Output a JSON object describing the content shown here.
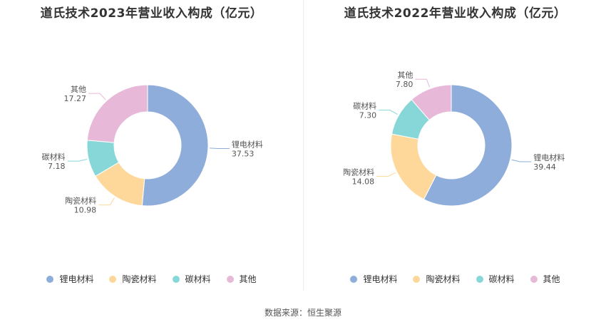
{
  "source": "数据来源：恒生聚源",
  "chart_data": [
    {
      "type": "pie",
      "title": "道氏技术2023年营业收入构成（亿元）",
      "categories": [
        "锂电材料",
        "陶瓷材料",
        "碳材料",
        "其他"
      ],
      "values": [
        37.53,
        10.98,
        7.18,
        17.27
      ],
      "value_labels": [
        "37.53",
        "10.98",
        "7.18",
        "17.27"
      ],
      "colors": [
        "#8eadda",
        "#fed89b",
        "#88d7d8",
        "#e7b8d8"
      ],
      "legend_position": "bottom"
    },
    {
      "type": "pie",
      "title": "道氏技术2022年营业收入构成（亿元）",
      "categories": [
        "锂电材料",
        "陶瓷材料",
        "碳材料",
        "其他"
      ],
      "values": [
        39.44,
        14.08,
        7.3,
        7.8
      ],
      "value_labels": [
        "39.44",
        "14.08",
        "7.30",
        "7.80"
      ],
      "colors": [
        "#8eadda",
        "#fed89b",
        "#88d7d8",
        "#e7b8d8"
      ],
      "legend_position": "bottom"
    }
  ]
}
